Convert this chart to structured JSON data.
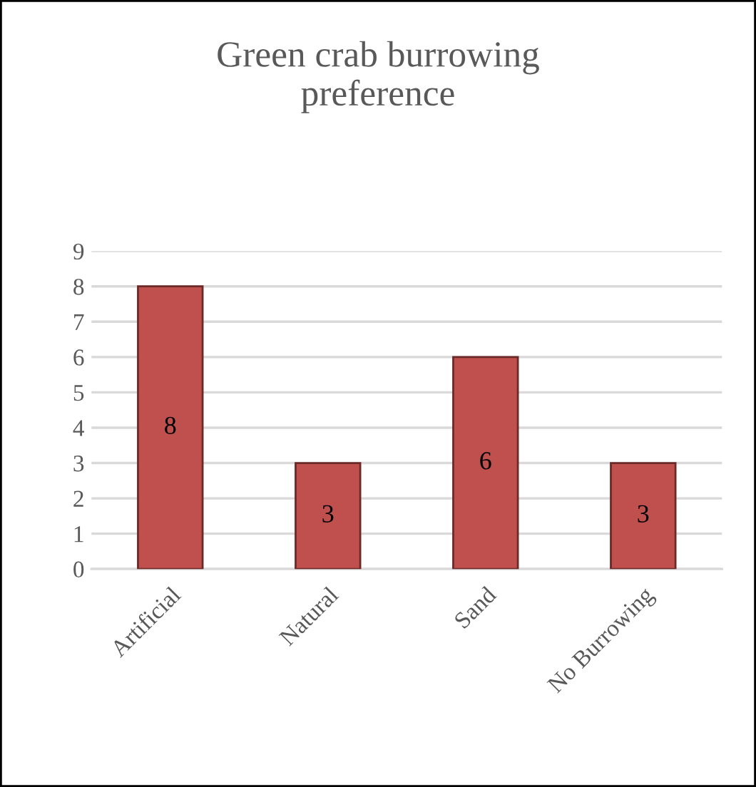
{
  "chart_data": {
    "type": "bar",
    "title": "Green crab burrowing preference",
    "categories": [
      "Artificial",
      "Natural",
      "Sand",
      "No Burrowing"
    ],
    "values": [
      8,
      3,
      6,
      3
    ],
    "color": "#c0504d",
    "ylim": [
      0,
      9
    ],
    "yticks": [
      0,
      1,
      2,
      3,
      4,
      5,
      6,
      7,
      8,
      9
    ],
    "grid": "y",
    "data_labels": true
  }
}
